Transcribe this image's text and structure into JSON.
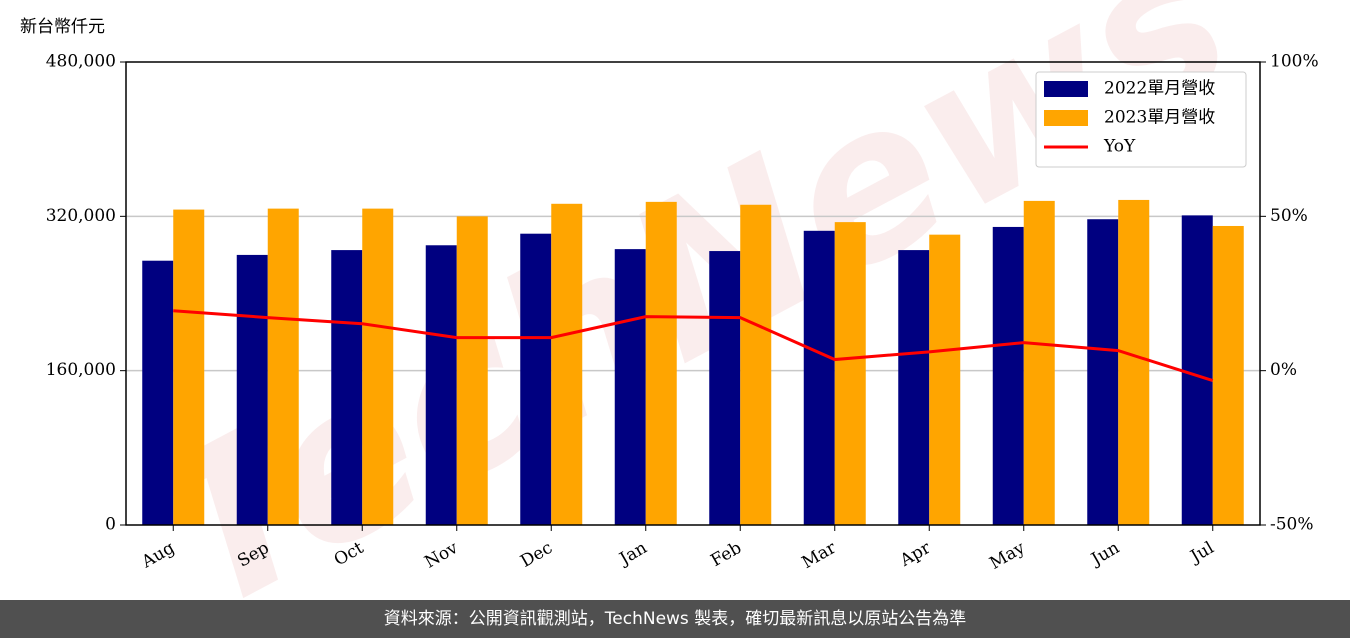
{
  "chart_data": {
    "type": "bar",
    "unit_label": "新台幣仟元",
    "watermark": "TechNews",
    "source": "資料來源：公開資訊觀測站，TechNews 製表，確切最新訊息以原站公告為準",
    "categories": [
      "Aug",
      "Sep",
      "Oct",
      "Nov",
      "Dec",
      "Jan",
      "Feb",
      "Mar",
      "Apr",
      "May",
      "Jun",
      "Jul"
    ],
    "series": [
      {
        "name": "2022單月營收",
        "type": "bar",
        "color": "#000080",
        "values": [
          274000,
          280000,
          285000,
          290000,
          302000,
          286000,
          284000,
          305000,
          285000,
          309000,
          317000,
          321000
        ]
      },
      {
        "name": "2023單月營收",
        "type": "bar",
        "color": "#ffa500",
        "values": [
          327000,
          328000,
          328000,
          320000,
          333000,
          335000,
          332000,
          314000,
          301000,
          336000,
          337000,
          310000
        ]
      },
      {
        "name": "YoY",
        "type": "line",
        "axis": "y2",
        "color": "#ff0000",
        "values": [
          19.4,
          17.2,
          15.2,
          10.7,
          10.7,
          17.5,
          17.2,
          3.6,
          6.1,
          9.1,
          6.5,
          -3.2
        ]
      }
    ],
    "ylim": [
      0,
      480000
    ],
    "yticks": [
      0,
      {
        "value": 160000,
        "label": "160,000"
      },
      {
        "value": 320000,
        "label": "320,000"
      },
      {
        "value": 480000,
        "label": "480,000"
      }
    ],
    "y2lim": [
      -50,
      100
    ],
    "y2ticks": [
      {
        "value": -50,
        "label": "-50%"
      },
      {
        "value": 0,
        "label": "0%"
      },
      {
        "value": 50,
        "label": "50%"
      },
      {
        "value": 100,
        "label": "100%"
      }
    ],
    "grid": true,
    "legend": "upper right"
  }
}
